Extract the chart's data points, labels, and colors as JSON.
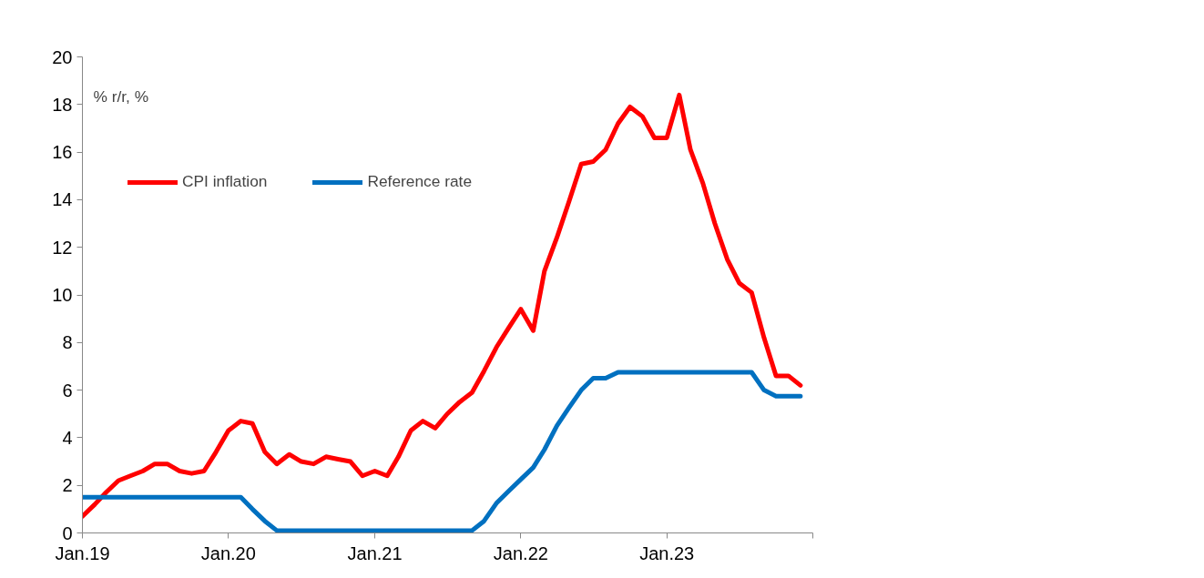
{
  "chart_data": {
    "type": "line",
    "annotations": [
      "% r/r, %"
    ],
    "x": [
      "2019-01",
      "2019-02",
      "2019-03",
      "2019-04",
      "2019-05",
      "2019-06",
      "2019-07",
      "2019-08",
      "2019-09",
      "2019-10",
      "2019-11",
      "2019-12",
      "2020-01",
      "2020-02",
      "2020-03",
      "2020-04",
      "2020-05",
      "2020-06",
      "2020-07",
      "2020-08",
      "2020-09",
      "2020-10",
      "2020-11",
      "2020-12",
      "2021-01",
      "2021-02",
      "2021-03",
      "2021-04",
      "2021-05",
      "2021-06",
      "2021-07",
      "2021-08",
      "2021-09",
      "2021-10",
      "2021-11",
      "2021-12",
      "2022-01",
      "2022-02",
      "2022-03",
      "2022-04",
      "2022-05",
      "2022-06",
      "2022-07",
      "2022-08",
      "2022-09",
      "2022-10",
      "2022-11",
      "2022-12",
      "2023-01",
      "2023-02",
      "2023-03",
      "2023-04",
      "2023-05",
      "2023-06",
      "2023-07",
      "2023-08",
      "2023-09",
      "2023-10",
      "2023-11",
      "2023-12"
    ],
    "series": [
      {
        "name": "CPI inflation",
        "color": "#ff0000",
        "values": [
          0.7,
          1.2,
          1.7,
          2.2,
          2.4,
          2.6,
          2.9,
          2.9,
          2.6,
          2.5,
          2.6,
          3.4,
          4.3,
          4.7,
          4.6,
          3.4,
          2.9,
          3.3,
          3.0,
          2.9,
          3.2,
          3.1,
          3.0,
          2.4,
          2.6,
          2.4,
          3.2,
          4.3,
          4.7,
          4.4,
          5.0,
          5.5,
          5.9,
          6.8,
          7.8,
          8.6,
          9.4,
          8.5,
          11.0,
          12.4,
          13.9,
          15.5,
          15.6,
          16.1,
          17.2,
          17.9,
          17.5,
          16.6,
          16.6,
          18.4,
          16.1,
          14.7,
          13.0,
          11.5,
          10.5,
          10.1,
          8.2,
          6.6,
          6.6,
          6.2
        ]
      },
      {
        "name": "Reference rate",
        "color": "#0070c0",
        "values": [
          1.5,
          1.5,
          1.5,
          1.5,
          1.5,
          1.5,
          1.5,
          1.5,
          1.5,
          1.5,
          1.5,
          1.5,
          1.5,
          1.5,
          1.0,
          0.5,
          0.1,
          0.1,
          0.1,
          0.1,
          0.1,
          0.1,
          0.1,
          0.1,
          0.1,
          0.1,
          0.1,
          0.1,
          0.1,
          0.1,
          0.1,
          0.1,
          0.1,
          0.5,
          1.25,
          1.75,
          2.25,
          2.75,
          3.5,
          4.5,
          5.25,
          6.0,
          6.5,
          6.5,
          6.75,
          6.75,
          6.75,
          6.75,
          6.75,
          6.75,
          6.75,
          6.75,
          6.75,
          6.75,
          6.75,
          6.75,
          6.0,
          5.75,
          5.75,
          5.75
        ]
      }
    ],
    "xlim": [
      "2019-01",
      "2024-01"
    ],
    "xticks": [
      {
        "value": "2019-01",
        "label": "Jan.19"
      },
      {
        "value": "2020-01",
        "label": "Jan.20"
      },
      {
        "value": "2021-01",
        "label": "Jan.21"
      },
      {
        "value": "2022-01",
        "label": "Jan.22"
      },
      {
        "value": "2023-01",
        "label": "Jan.23"
      },
      {
        "value": "2024-01",
        "label": null
      }
    ],
    "ylim": [
      0,
      20
    ],
    "yticks": [
      0,
      2,
      4,
      6,
      8,
      10,
      12,
      14,
      16,
      18,
      20
    ],
    "grid": false,
    "legend": "top left",
    "line_style": "solid"
  }
}
